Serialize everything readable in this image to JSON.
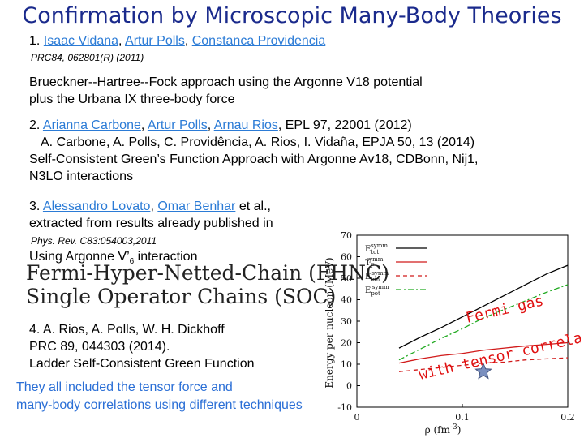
{
  "title": "Confirmation by Microscopic Many-Body Theories",
  "ref1": {
    "num": "1.",
    "authors": [
      "Isaac Vidana",
      "Artur Polls",
      "Constanca Providencia"
    ],
    "journal": "PRC84, 062801(R) (2011)",
    "desc1": "Brueckner--Hartree--Fock approach using the Argonne V18 potential",
    "desc2": "plus the Urbana IX three-body force"
  },
  "ref2": {
    "num": "2.",
    "authors": [
      "Arianna Carbone",
      "Artur Polls",
      "Arnau Rios"
    ],
    "journal": ", EPL 97, 22001 (2012)",
    "line2": "A. Carbone, A. Polls, C. Providência, A. Rios, I. Vidaña, EPJA 50, 13 (2014)",
    "line3": "Self-Consistent Green’s Function Approach with Argonne Av18, CDBonn, Nij1,",
    "line4": "N3LO interactions"
  },
  "ref3": {
    "num": "3.",
    "authors": [
      "Alessandro Lovato",
      "Omar Benhar"
    ],
    "etal": "et al.,",
    "line2": "extracted from results already published in",
    "journal": "Phys. Rev. C83:054003,2011",
    "using": "Using Argonne V’",
    "using_sub": "6",
    "using_tail": " interaction",
    "method1": "Fermi-Hyper-Netted-Chain (FHNC)",
    "method2": "Single Operator Chains (SOC)"
  },
  "ref4": {
    "line1": "4. A. Rios, A. Polls, W. H. Dickhoff",
    "line2": "PRC 89, 044303 (2014).",
    "line3": "Ladder Self-Consistent Green Function"
  },
  "conclusion": {
    "line1": "They all included the tensor force and",
    "line2": "many-body correlations using different techniques"
  },
  "colors": {
    "title": "#1a2a8c",
    "link": "#2b7bd6",
    "conclusion": "#2b6fd6",
    "annotation": "#e01010",
    "star": "#7a8fbf"
  },
  "chart_data": {
    "type": "line",
    "xlabel": "ρ (fm",
    "xlabel_sup": "-3",
    "xlabel_tail": ")",
    "ylabel": "Energy per nucleon (MeV)",
    "xlim": [
      0,
      0.2
    ],
    "ylim": [
      -10,
      70
    ],
    "xticks": [
      "0",
      "0.1",
      "0.2"
    ],
    "xtick_values": [
      0,
      0.1,
      0.2
    ],
    "yticks": [
      "-10",
      "0",
      "10",
      "20",
      "30",
      "40",
      "50",
      "60",
      "70"
    ],
    "ytick_values": [
      -10,
      0,
      10,
      20,
      30,
      40,
      50,
      60,
      70
    ],
    "legend": [
      {
        "label": "E",
        "sub": "tot",
        "sup": "symm",
        "color": "#000000",
        "dash": ""
      },
      {
        "label": "T",
        "sub": "F",
        "sup": "symm",
        "color": "#d11a1a",
        "dash": ""
      },
      {
        "label": "E",
        "sub": "kin",
        "sup": "symm",
        "color": "#d11a1a",
        "dash": "5,4"
      },
      {
        "label": "E",
        "sub": "pot",
        "sup": "symm",
        "color": "#22aa22",
        "dash": "7,3,2,3"
      }
    ],
    "series": [
      {
        "color": "#000000",
        "dash": "",
        "x": [
          0.04,
          0.06,
          0.08,
          0.1,
          0.12,
          0.14,
          0.16,
          0.18,
          0.2
        ],
        "y": [
          17.5,
          22.5,
          27.0,
          32.0,
          37.0,
          42.0,
          47.0,
          52.0,
          56.0
        ]
      },
      {
        "color": "#d11a1a",
        "dash": "",
        "x": [
          0.04,
          0.06,
          0.08,
          0.1,
          0.12,
          0.14,
          0.16,
          0.18,
          0.2
        ],
        "y": [
          10.5,
          12.5,
          14.0,
          15.0,
          16.5,
          17.5,
          18.5,
          19.2,
          20.0
        ]
      },
      {
        "color": "#d11a1a",
        "dash": "5,4",
        "x": [
          0.04,
          0.06,
          0.08,
          0.1,
          0.12,
          0.14,
          0.16,
          0.18,
          0.2
        ],
        "y": [
          6.5,
          7.5,
          8.5,
          9.5,
          10.5,
          11.0,
          12.0,
          12.5,
          13.0
        ]
      },
      {
        "color": "#22aa22",
        "dash": "7,3,2,3",
        "x": [
          0.04,
          0.06,
          0.08,
          0.1,
          0.12,
          0.14,
          0.16,
          0.18,
          0.2
        ],
        "y": [
          12.0,
          17.0,
          22.0,
          26.5,
          31.5,
          35.5,
          39.5,
          43.5,
          47.0
        ]
      }
    ],
    "star": {
      "x": 0.12,
      "y": 6.5
    },
    "annotation1": "Fermi gas",
    "annotation2": "with tensor correlation"
  }
}
